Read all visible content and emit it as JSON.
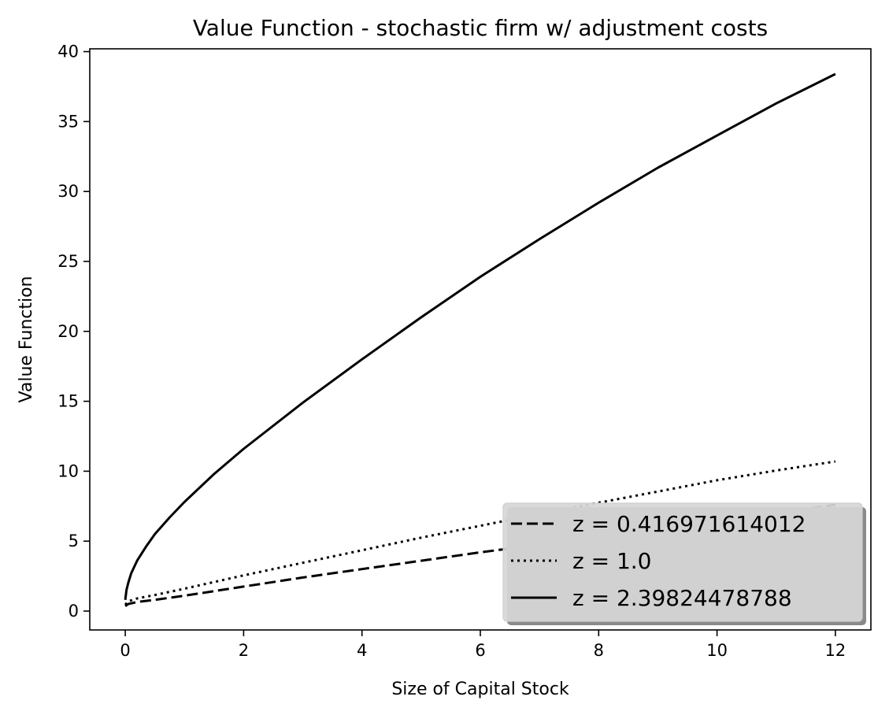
{
  "chart_data": {
    "type": "line",
    "title": "Value Function - stochastic firm w/ adjustment costs",
    "xlabel": "Size of Capital Stock",
    "ylabel": "Value Function",
    "xlim": [
      -0.6,
      12.6
    ],
    "ylim": [
      -1.35,
      40.2
    ],
    "xticks": [
      0,
      2,
      4,
      6,
      8,
      10,
      12
    ],
    "yticks": [
      0,
      5,
      10,
      15,
      20,
      25,
      30,
      35,
      40
    ],
    "grid": false,
    "legend": {
      "position": "lower-right",
      "facecolor": "#d6d6d6",
      "shadow": true
    },
    "series": [
      {
        "name": "z = 0.416971614012",
        "linestyle": "dashed",
        "color": "#000000",
        "x": [
          0.0,
          0.05,
          0.2,
          0.5,
          1,
          2,
          3,
          4,
          5,
          6,
          7,
          8,
          9,
          10,
          11,
          12
        ],
        "y": [
          0.35,
          0.5,
          0.65,
          0.8,
          1.1,
          1.75,
          2.4,
          3.0,
          3.6,
          4.2,
          4.75,
          5.3,
          5.9,
          6.5,
          7.0,
          7.6
        ]
      },
      {
        "name": "z = 1.0",
        "linestyle": "dotted",
        "color": "#000000",
        "x": [
          0.0,
          0.05,
          0.2,
          0.5,
          1,
          2,
          3,
          4,
          5,
          6,
          7,
          8,
          9,
          10,
          11,
          12
        ],
        "y": [
          0.45,
          0.7,
          0.9,
          1.15,
          1.6,
          2.55,
          3.45,
          4.35,
          5.25,
          6.1,
          6.95,
          7.75,
          8.55,
          9.35,
          10.05,
          10.7
        ]
      },
      {
        "name": "z = 2.39824478788",
        "linestyle": "solid",
        "color": "#000000",
        "x": [
          0.0,
          0.02,
          0.05,
          0.1,
          0.2,
          0.35,
          0.5,
          0.75,
          1,
          1.5,
          2,
          3,
          4,
          5,
          6,
          7,
          8,
          9,
          10,
          11,
          12
        ],
        "y": [
          0.8,
          1.5,
          2.0,
          2.7,
          3.6,
          4.6,
          5.5,
          6.7,
          7.8,
          9.8,
          11.6,
          14.9,
          18.0,
          21.0,
          23.9,
          26.6,
          29.2,
          31.7,
          34.0,
          36.3,
          38.4
        ]
      }
    ]
  }
}
